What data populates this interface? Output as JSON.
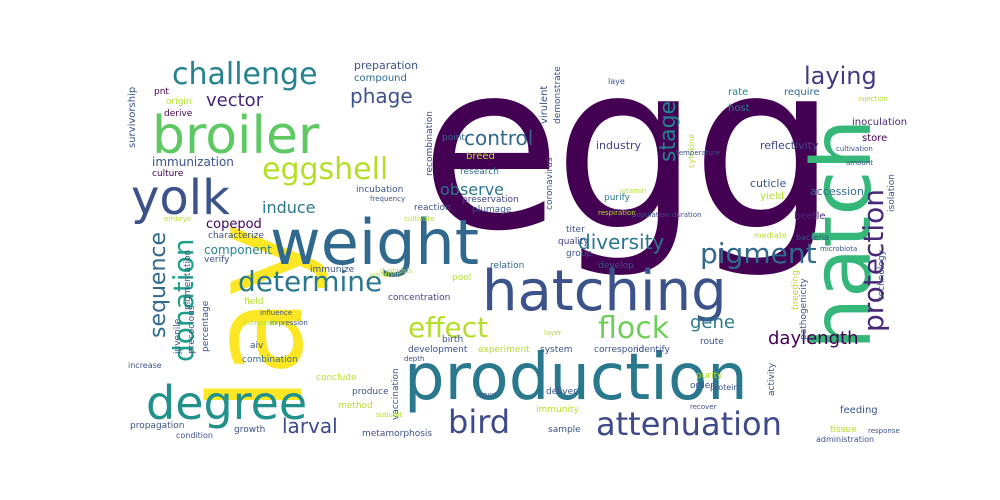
{
  "words": [
    {
      "text": "egg",
      "color": "#440154"
    },
    {
      "text": "lay",
      "color": "#fde725"
    },
    {
      "text": "production",
      "color": "#2a788e"
    },
    {
      "text": "weight",
      "color": "#31688e"
    },
    {
      "text": "hatching",
      "color": "#3b528b"
    },
    {
      "text": "hatch",
      "color": "#35b779"
    },
    {
      "text": "broiler",
      "color": "#5ec962"
    },
    {
      "text": "yolk",
      "color": "#3b528b"
    },
    {
      "text": "degree",
      "color": "#21918c"
    },
    {
      "text": "challenge",
      "color": "#26828e"
    },
    {
      "text": "eggshell",
      "color": "#b5de2b"
    },
    {
      "text": "attenuation",
      "color": "#3e4a89"
    },
    {
      "text": "determine",
      "color": "#2a788e"
    },
    {
      "text": "protection",
      "color": "#482878"
    },
    {
      "text": "pigment",
      "color": "#31688e"
    },
    {
      "text": "effect",
      "color": "#b5de2b"
    },
    {
      "text": "flock",
      "color": "#6ece58"
    },
    {
      "text": "bird",
      "color": "#3e4a89"
    },
    {
      "text": "donation",
      "color": "#1f9e89"
    },
    {
      "text": "sequence",
      "color": "#31688e"
    },
    {
      "text": "diversity",
      "color": "#2a788e"
    },
    {
      "text": "laying",
      "color": "#443a83"
    },
    {
      "text": "stage",
      "color": "#26828e"
    },
    {
      "text": "control",
      "color": "#31688e"
    },
    {
      "text": "phage",
      "color": "#3b528b"
    },
    {
      "text": "vector",
      "color": "#482878"
    },
    {
      "text": "daylength",
      "color": "#440154"
    },
    {
      "text": "larval",
      "color": "#3e4a89"
    },
    {
      "text": "gene",
      "color": "#2a788e"
    },
    {
      "text": "induce",
      "color": "#2a788e"
    },
    {
      "text": "observe",
      "color": "#2a788e"
    },
    {
      "text": "copepod",
      "color": "#440154"
    },
    {
      "text": "immunization",
      "color": "#3b528b"
    },
    {
      "text": "component",
      "color": "#26828e"
    },
    {
      "text": "reflectivity",
      "color": "#414487"
    },
    {
      "text": "industry",
      "color": "#414487"
    },
    {
      "text": "cuticle",
      "color": "#3b528b"
    },
    {
      "text": "accession",
      "color": "#31688e"
    },
    {
      "text": "beetle",
      "color": "#482878"
    },
    {
      "text": "preparation",
      "color": "#3b528b"
    },
    {
      "text": "compound",
      "color": "#31688e"
    },
    {
      "text": "breed",
      "color": "#b5de2b"
    },
    {
      "text": "virulent",
      "color": "#3b528b"
    },
    {
      "text": "inoculation",
      "color": "#482878"
    },
    {
      "text": "rate",
      "color": "#26828e"
    },
    {
      "text": "host",
      "color": "#26828e"
    },
    {
      "text": "require",
      "color": "#31688e"
    },
    {
      "text": "store",
      "color": "#440154"
    },
    {
      "text": "isolation",
      "color": "#3b528b"
    },
    {
      "text": "survivorship",
      "color": "#3b528b"
    },
    {
      "text": "culture",
      "color": "#440154"
    },
    {
      "text": "derive",
      "color": "#440154"
    },
    {
      "text": "origin",
      "color": "#b5de2b"
    },
    {
      "text": "pnt",
      "color": "#440154"
    },
    {
      "text": "point",
      "color": "#31688e"
    },
    {
      "text": "research",
      "color": "#31688e"
    },
    {
      "text": "demonstrate",
      "color": "#3b528b"
    },
    {
      "text": "coronavirus",
      "color": "#3b528b"
    },
    {
      "text": "recombination",
      "color": "#414487"
    },
    {
      "text": "incubation",
      "color": "#3b528b"
    },
    {
      "text": "reaction",
      "color": "#3b528b"
    },
    {
      "text": "preservation",
      "color": "#414487"
    },
    {
      "text": "plumage",
      "color": "#3b528b"
    },
    {
      "text": "purify",
      "color": "#2a788e"
    },
    {
      "text": "yield",
      "color": "#b5de2b"
    },
    {
      "text": "quality",
      "color": "#414487"
    },
    {
      "text": "group",
      "color": "#3b528b"
    },
    {
      "text": "develop",
      "color": "#3b528b"
    },
    {
      "text": "relation",
      "color": "#31688e"
    },
    {
      "text": "immunize",
      "color": "#3b528b"
    },
    {
      "text": "characterize",
      "color": "#3b528b"
    },
    {
      "text": "pigmentation",
      "color": "#3b528b"
    },
    {
      "text": "verify",
      "color": "#3b528b"
    },
    {
      "text": "field",
      "color": "#b5de2b"
    },
    {
      "text": "percentage",
      "color": "#3b528b"
    },
    {
      "text": "juvenile",
      "color": "#3b528b"
    },
    {
      "text": "precocious",
      "color": "#3b528b"
    },
    {
      "text": "aiv",
      "color": "#3b528b"
    },
    {
      "text": "combination",
      "color": "#31688e"
    },
    {
      "text": "conclude",
      "color": "#b5de2b"
    },
    {
      "text": "concentration",
      "color": "#414487"
    },
    {
      "text": "development",
      "color": "#3b528b"
    },
    {
      "text": "experiment",
      "color": "#b5de2b"
    },
    {
      "text": "system",
      "color": "#3b528b"
    },
    {
      "text": "correspond",
      "color": "#3b528b"
    },
    {
      "text": "identify",
      "color": "#3b528b"
    },
    {
      "text": "route",
      "color": "#3b528b"
    },
    {
      "text": "order",
      "color": "#3b528b"
    },
    {
      "text": "purity",
      "color": "#b5de2b"
    },
    {
      "text": "protein",
      "color": "#3b528b"
    },
    {
      "text": "activity",
      "color": "#3b528b"
    },
    {
      "text": "feeding",
      "color": "#3b528b"
    },
    {
      "text": "tissue",
      "color": "#b5de2b"
    },
    {
      "text": "propagation",
      "color": "#3b528b"
    },
    {
      "text": "condition",
      "color": "#3b528b"
    },
    {
      "text": "growth",
      "color": "#3b528b"
    },
    {
      "text": "method",
      "color": "#b5de2b"
    },
    {
      "text": "produce",
      "color": "#3b528b"
    },
    {
      "text": "vaccination",
      "color": "#3b528b"
    },
    {
      "text": "metamorphosis",
      "color": "#3b528b"
    },
    {
      "text": "immunity",
      "color": "#b5de2b"
    },
    {
      "text": "sample",
      "color": "#3b528b"
    },
    {
      "text": "deliver",
      "color": "#3b528b"
    },
    {
      "text": "birth",
      "color": "#3b528b"
    },
    {
      "text": "pool",
      "color": "#b5de2b"
    },
    {
      "text": "breeding",
      "color": "#b5de2b"
    },
    {
      "text": "pathogenicity",
      "color": "#3b528b"
    },
    {
      "text": "technology",
      "color": "#3b528b"
    },
    {
      "text": "bacteria",
      "color": "#3b528b"
    },
    {
      "text": "mediate",
      "color": "#b5de2b"
    },
    {
      "text": "administration",
      "color": "#3b528b"
    },
    {
      "text": "increase",
      "color": "#3b528b"
    },
    {
      "text": "cytokine",
      "color": "#b5de2b"
    },
    {
      "text": "laye",
      "color": "#3b528b"
    },
    {
      "text": "titer",
      "color": "#3b528b"
    },
    {
      "text": "depth",
      "color": "#3b528b"
    },
    {
      "text": "respiration",
      "color": "#b5de2b"
    },
    {
      "text": "population",
      "color": "#3b528b"
    },
    {
      "text": "duration",
      "color": "#3b528b"
    },
    {
      "text": "vitamin",
      "color": "#b5de2b"
    },
    {
      "text": "report",
      "color": "#3b528b"
    },
    {
      "text": "subunit",
      "color": "#b5de2b"
    },
    {
      "text": "temperature",
      "color": "#3b528b"
    },
    {
      "text": "variation",
      "color": "#b5de2b"
    },
    {
      "text": "recover",
      "color": "#3b528b"
    },
    {
      "text": "cultivation",
      "color": "#3b528b"
    },
    {
      "text": "amount",
      "color": "#3b528b"
    },
    {
      "text": "injection",
      "color": "#b5de2b"
    },
    {
      "text": "response",
      "color": "#3b528b"
    },
    {
      "text": "embryo",
      "color": "#b5de2b"
    },
    {
      "text": "microbiota",
      "color": "#3b528b"
    },
    {
      "text": "dysbiosis",
      "color": "#b5de2b"
    },
    {
      "text": "expression",
      "color": "#3b528b"
    },
    {
      "text": "cultivate",
      "color": "#b5de2b"
    },
    {
      "text": "frequency",
      "color": "#3b528b"
    },
    {
      "text": "layer",
      "color": "#b5de2b"
    },
    {
      "text": "influence",
      "color": "#3b528b"
    },
    {
      "text": "composition",
      "color": "#b5de2b"
    }
  ]
}
